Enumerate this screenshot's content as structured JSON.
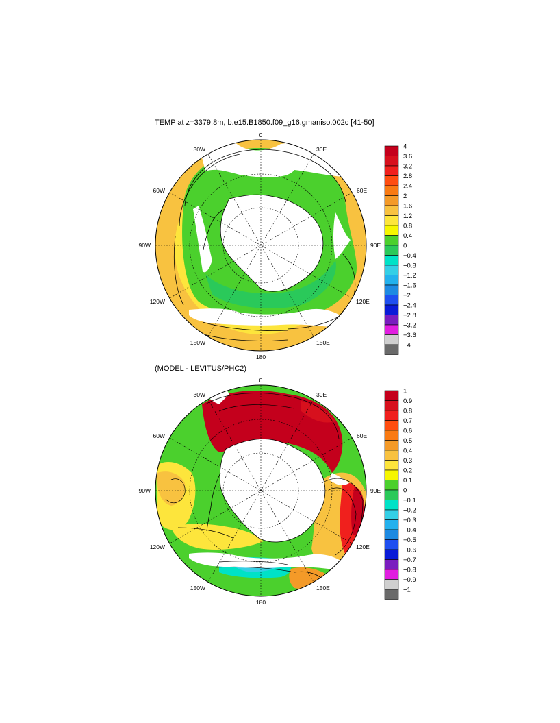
{
  "panel1": {
    "title": "TEMP at z=3379.8m, b.e15.B1850.f09_g16.gmaniso.002c [41-50]",
    "colorbar": {
      "labels": [
        "4",
        "3.6",
        "3.2",
        "2.8",
        "2.4",
        "2",
        "1.6",
        "1.2",
        "0.8",
        "0.4",
        "0",
        "−0.4",
        "−0.8",
        "−1.2",
        "−1.6",
        "−2",
        "−2.4",
        "−2.8",
        "−3.2",
        "−3.6",
        "−4"
      ],
      "colors": [
        "#c4001c",
        "#d7101d",
        "#f0201d",
        "#ff4d10",
        "#f97a12",
        "#f49a28",
        "#f8c240",
        "#fde53c",
        "#f6f600",
        "#4bd02d",
        "#2ac95a",
        "#00e2c7",
        "#34cfe6",
        "#23b1ed",
        "#1e8ae2",
        "#1f4ff0",
        "#0a1bd8",
        "#7a1dbf",
        "#e11ee0",
        "#cfcfcf",
        "#6a6a6a"
      ]
    }
  },
  "panel2": {
    "title": "(MODEL - LEVITUS/PHC2)",
    "colorbar": {
      "labels": [
        "1",
        "0.9",
        "0.8",
        "0.7",
        "0.6",
        "0.5",
        "0.4",
        "0.3",
        "0.2",
        "0.1",
        "0",
        "−0.1",
        "−0.2",
        "−0.3",
        "−0.4",
        "−0.5",
        "−0.6",
        "−0.7",
        "−0.8",
        "−0.9",
        "−1"
      ],
      "colors": [
        "#c4001c",
        "#d7101d",
        "#f0201d",
        "#ff4d10",
        "#f97a12",
        "#f49a28",
        "#f8c240",
        "#fde53c",
        "#f6f600",
        "#4bd02d",
        "#2ac95a",
        "#00e2c7",
        "#34cfe6",
        "#23b1ed",
        "#1e8ae2",
        "#1f4ff0",
        "#0a1bd8",
        "#7a1dbf",
        "#e11ee0",
        "#cfcfcf",
        "#6a6a6a"
      ]
    }
  },
  "longitude_labels": {
    "lon_0": "0",
    "lon_30e": "30E",
    "lon_60e": "60E",
    "lon_90e": "90E",
    "lon_120e": "120E",
    "lon_150e": "150E",
    "lon_180": "180",
    "lon_150w": "150W",
    "lon_120w": "120W",
    "lon_90w": "90W",
    "lon_60w": "60W",
    "lon_30w": "30W"
  }
}
